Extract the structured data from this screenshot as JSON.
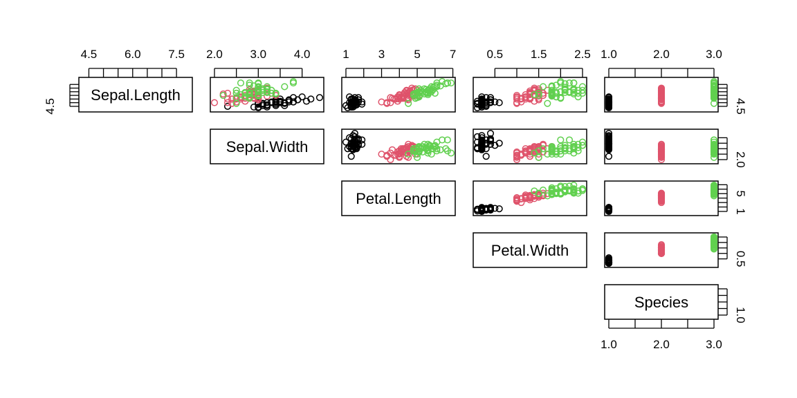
{
  "chart_data": {
    "type": "scatter",
    "variables": [
      "Sepal.Length",
      "Sepal.Width",
      "Petal.Length",
      "Petal.Width",
      "Species"
    ],
    "ranges": [
      [
        4.3,
        7.9
      ],
      [
        2.0,
        4.4
      ],
      [
        1.0,
        6.9
      ],
      [
        0.1,
        2.5
      ],
      [
        1.0,
        3.0
      ]
    ],
    "axis_ticks": {
      "Sepal.Length": [
        4.5,
        5.0,
        5.5,
        6.0,
        6.5,
        7.0,
        7.5
      ],
      "Sepal.Width": [
        2.0,
        2.5,
        3.0,
        3.5,
        4.0
      ],
      "Petal.Length": [
        1,
        2,
        3,
        4,
        5,
        6,
        7
      ],
      "Petal.Width": [
        0.5,
        1.0,
        1.5,
        2.0,
        2.5
      ],
      "Species": [
        1.0,
        1.5,
        2.0,
        2.5,
        3.0
      ]
    },
    "axis_tick_labels": {
      "Sepal.Length": [
        "4.5",
        "6.0",
        "7.5"
      ],
      "Sepal.Width": [
        "2.0",
        "3.0",
        "4.0"
      ],
      "Petal.Length": [
        "1",
        "3",
        "5",
        "7"
      ],
      "Petal.Width": [
        "0.5",
        "1.5",
        "2.5"
      ],
      "Species": [
        "1.0",
        "2.0",
        "3.0"
      ]
    },
    "right_tick_labels": {
      "Sepal.Length": [
        "4.5"
      ],
      "Sepal.Width": [
        "2.0"
      ],
      "Petal.Length": [
        "1",
        "5"
      ],
      "Petal.Width": [
        "0.5"
      ],
      "Species": [
        "1.0"
      ]
    },
    "species_colors": [
      "#000000",
      "#DF536B",
      "#61D04F"
    ],
    "species_points": [
      [
        [
          5.1,
          3.5,
          1.4,
          0.2
        ],
        [
          4.9,
          3.0,
          1.4,
          0.2
        ],
        [
          4.7,
          3.2,
          1.3,
          0.2
        ],
        [
          4.6,
          3.1,
          1.5,
          0.2
        ],
        [
          5.0,
          3.6,
          1.4,
          0.2
        ],
        [
          5.4,
          3.9,
          1.7,
          0.4
        ],
        [
          4.6,
          3.4,
          1.4,
          0.3
        ],
        [
          5.0,
          3.4,
          1.5,
          0.2
        ],
        [
          4.4,
          2.9,
          1.4,
          0.2
        ],
        [
          4.9,
          3.1,
          1.5,
          0.1
        ],
        [
          5.4,
          3.7,
          1.5,
          0.2
        ],
        [
          4.8,
          3.4,
          1.6,
          0.2
        ],
        [
          4.8,
          3.0,
          1.4,
          0.1
        ],
        [
          4.3,
          3.0,
          1.1,
          0.1
        ],
        [
          5.8,
          4.0,
          1.2,
          0.2
        ],
        [
          5.7,
          4.4,
          1.5,
          0.4
        ],
        [
          5.4,
          3.9,
          1.3,
          0.4
        ],
        [
          5.1,
          3.5,
          1.4,
          0.3
        ],
        [
          5.7,
          3.8,
          1.7,
          0.3
        ],
        [
          5.1,
          3.8,
          1.5,
          0.3
        ],
        [
          5.4,
          3.4,
          1.7,
          0.2
        ],
        [
          5.1,
          3.7,
          1.5,
          0.4
        ],
        [
          4.6,
          3.6,
          1.0,
          0.2
        ],
        [
          5.1,
          3.3,
          1.7,
          0.5
        ],
        [
          4.8,
          3.4,
          1.9,
          0.2
        ],
        [
          5.0,
          3.0,
          1.6,
          0.2
        ],
        [
          5.0,
          3.4,
          1.6,
          0.4
        ],
        [
          5.2,
          3.5,
          1.5,
          0.2
        ],
        [
          5.2,
          3.4,
          1.4,
          0.2
        ],
        [
          4.7,
          3.2,
          1.6,
          0.2
        ],
        [
          4.8,
          3.1,
          1.6,
          0.2
        ],
        [
          5.4,
          3.4,
          1.5,
          0.4
        ],
        [
          5.2,
          4.1,
          1.5,
          0.1
        ],
        [
          5.5,
          4.2,
          1.4,
          0.2
        ],
        [
          4.9,
          3.1,
          1.5,
          0.2
        ],
        [
          5.0,
          3.2,
          1.2,
          0.2
        ],
        [
          5.5,
          3.5,
          1.3,
          0.2
        ],
        [
          4.9,
          3.6,
          1.4,
          0.1
        ],
        [
          4.4,
          3.0,
          1.3,
          0.2
        ],
        [
          5.1,
          3.4,
          1.5,
          0.2
        ],
        [
          5.0,
          3.5,
          1.3,
          0.3
        ],
        [
          4.5,
          2.3,
          1.3,
          0.3
        ],
        [
          4.4,
          3.2,
          1.3,
          0.2
        ],
        [
          5.0,
          3.5,
          1.6,
          0.6
        ],
        [
          5.1,
          3.8,
          1.9,
          0.4
        ],
        [
          4.8,
          3.0,
          1.4,
          0.3
        ],
        [
          5.1,
          3.8,
          1.6,
          0.2
        ],
        [
          4.6,
          3.2,
          1.4,
          0.2
        ],
        [
          5.3,
          3.7,
          1.5,
          0.2
        ],
        [
          5.0,
          3.3,
          1.4,
          0.2
        ]
      ],
      [
        [
          7.0,
          3.2,
          4.7,
          1.4
        ],
        [
          6.4,
          3.2,
          4.5,
          1.5
        ],
        [
          6.9,
          3.1,
          4.9,
          1.5
        ],
        [
          5.5,
          2.3,
          4.0,
          1.3
        ],
        [
          6.5,
          2.8,
          4.6,
          1.5
        ],
        [
          5.7,
          2.8,
          4.5,
          1.3
        ],
        [
          6.3,
          3.3,
          4.7,
          1.6
        ],
        [
          4.9,
          2.4,
          3.3,
          1.0
        ],
        [
          6.6,
          2.9,
          4.6,
          1.3
        ],
        [
          5.2,
          2.7,
          3.9,
          1.4
        ],
        [
          5.0,
          2.0,
          3.5,
          1.0
        ],
        [
          5.9,
          3.0,
          4.2,
          1.5
        ],
        [
          6.0,
          2.2,
          4.0,
          1.0
        ],
        [
          6.1,
          2.9,
          4.7,
          1.4
        ],
        [
          5.6,
          2.9,
          3.6,
          1.3
        ],
        [
          6.7,
          3.1,
          4.4,
          1.4
        ],
        [
          5.6,
          3.0,
          4.5,
          1.5
        ],
        [
          5.8,
          2.7,
          4.1,
          1.0
        ],
        [
          6.2,
          2.2,
          4.5,
          1.5
        ],
        [
          5.6,
          2.5,
          3.9,
          1.1
        ],
        [
          5.9,
          3.2,
          4.8,
          1.8
        ],
        [
          6.1,
          2.8,
          4.0,
          1.3
        ],
        [
          6.3,
          2.5,
          4.9,
          1.5
        ],
        [
          6.1,
          2.8,
          4.7,
          1.2
        ],
        [
          6.4,
          2.9,
          4.3,
          1.3
        ],
        [
          6.6,
          3.0,
          4.4,
          1.4
        ],
        [
          6.8,
          2.8,
          4.8,
          1.4
        ],
        [
          6.7,
          3.0,
          5.0,
          1.7
        ],
        [
          6.0,
          2.9,
          4.5,
          1.5
        ],
        [
          5.7,
          2.6,
          3.5,
          1.0
        ],
        [
          5.5,
          2.4,
          3.8,
          1.1
        ],
        [
          5.5,
          2.4,
          3.7,
          1.0
        ],
        [
          5.8,
          2.7,
          3.9,
          1.2
        ],
        [
          6.0,
          2.7,
          5.1,
          1.6
        ],
        [
          5.4,
          3.0,
          4.5,
          1.5
        ],
        [
          6.0,
          3.4,
          4.5,
          1.6
        ],
        [
          6.7,
          3.1,
          4.7,
          1.5
        ],
        [
          6.3,
          2.3,
          4.4,
          1.3
        ],
        [
          5.6,
          3.0,
          4.1,
          1.3
        ],
        [
          5.5,
          2.5,
          4.0,
          1.3
        ],
        [
          5.5,
          2.6,
          4.4,
          1.2
        ],
        [
          6.1,
          3.0,
          4.6,
          1.4
        ],
        [
          5.8,
          2.6,
          4.0,
          1.2
        ],
        [
          5.0,
          2.3,
          3.3,
          1.0
        ],
        [
          5.6,
          2.7,
          4.2,
          1.3
        ],
        [
          5.7,
          3.0,
          4.2,
          1.2
        ],
        [
          5.7,
          2.9,
          4.2,
          1.3
        ],
        [
          6.2,
          2.9,
          4.3,
          1.3
        ],
        [
          5.1,
          2.5,
          3.0,
          1.1
        ],
        [
          5.7,
          2.8,
          4.1,
          1.3
        ]
      ],
      [
        [
          6.3,
          3.3,
          6.0,
          2.5
        ],
        [
          5.8,
          2.7,
          5.1,
          1.9
        ],
        [
          7.1,
          3.0,
          5.9,
          2.1
        ],
        [
          6.3,
          2.9,
          5.6,
          1.8
        ],
        [
          6.5,
          3.0,
          5.8,
          2.2
        ],
        [
          7.6,
          3.0,
          6.6,
          2.1
        ],
        [
          4.9,
          2.5,
          4.5,
          1.7
        ],
        [
          7.3,
          2.9,
          6.3,
          1.8
        ],
        [
          6.7,
          2.5,
          5.8,
          1.8
        ],
        [
          7.2,
          3.6,
          6.1,
          2.5
        ],
        [
          6.5,
          3.2,
          5.1,
          2.0
        ],
        [
          6.4,
          2.7,
          5.3,
          1.9
        ],
        [
          6.8,
          3.0,
          5.5,
          2.1
        ],
        [
          5.7,
          2.5,
          5.0,
          2.0
        ],
        [
          5.8,
          2.8,
          5.1,
          2.4
        ],
        [
          6.4,
          3.2,
          5.3,
          2.3
        ],
        [
          6.5,
          3.0,
          5.5,
          1.8
        ],
        [
          7.7,
          3.8,
          6.7,
          2.2
        ],
        [
          7.7,
          2.6,
          6.9,
          2.3
        ],
        [
          6.0,
          2.2,
          5.0,
          1.5
        ],
        [
          6.9,
          3.2,
          5.7,
          2.3
        ],
        [
          5.6,
          2.8,
          4.9,
          2.0
        ],
        [
          7.7,
          2.8,
          6.7,
          2.0
        ],
        [
          6.3,
          2.7,
          4.9,
          1.8
        ],
        [
          6.7,
          3.3,
          5.7,
          2.1
        ],
        [
          7.2,
          3.2,
          6.0,
          1.8
        ],
        [
          6.2,
          2.8,
          4.8,
          1.8
        ],
        [
          6.1,
          3.0,
          4.9,
          1.8
        ],
        [
          6.4,
          2.8,
          5.6,
          2.1
        ],
        [
          7.2,
          3.0,
          5.8,
          1.6
        ],
        [
          7.4,
          2.8,
          6.1,
          1.9
        ],
        [
          7.9,
          3.8,
          6.4,
          2.0
        ],
        [
          6.4,
          2.8,
          5.6,
          2.2
        ],
        [
          6.3,
          2.8,
          5.1,
          1.5
        ],
        [
          6.1,
          2.6,
          5.6,
          1.4
        ],
        [
          7.7,
          3.0,
          6.1,
          2.3
        ],
        [
          6.3,
          3.4,
          5.6,
          2.4
        ],
        [
          6.4,
          3.1,
          5.5,
          1.8
        ],
        [
          6.0,
          3.0,
          4.8,
          1.8
        ],
        [
          6.9,
          3.1,
          5.4,
          2.1
        ],
        [
          6.7,
          3.1,
          5.6,
          2.4
        ],
        [
          6.9,
          3.1,
          5.1,
          2.3
        ],
        [
          5.8,
          2.7,
          5.1,
          1.9
        ],
        [
          6.8,
          3.2,
          5.9,
          2.3
        ],
        [
          6.7,
          3.3,
          5.7,
          2.5
        ],
        [
          6.7,
          3.0,
          5.2,
          2.3
        ],
        [
          6.3,
          2.5,
          5.0,
          1.9
        ],
        [
          6.5,
          3.0,
          5.2,
          2.0
        ],
        [
          6.2,
          3.4,
          5.4,
          2.3
        ],
        [
          5.9,
          3.0,
          5.1,
          1.8
        ]
      ]
    ]
  }
}
